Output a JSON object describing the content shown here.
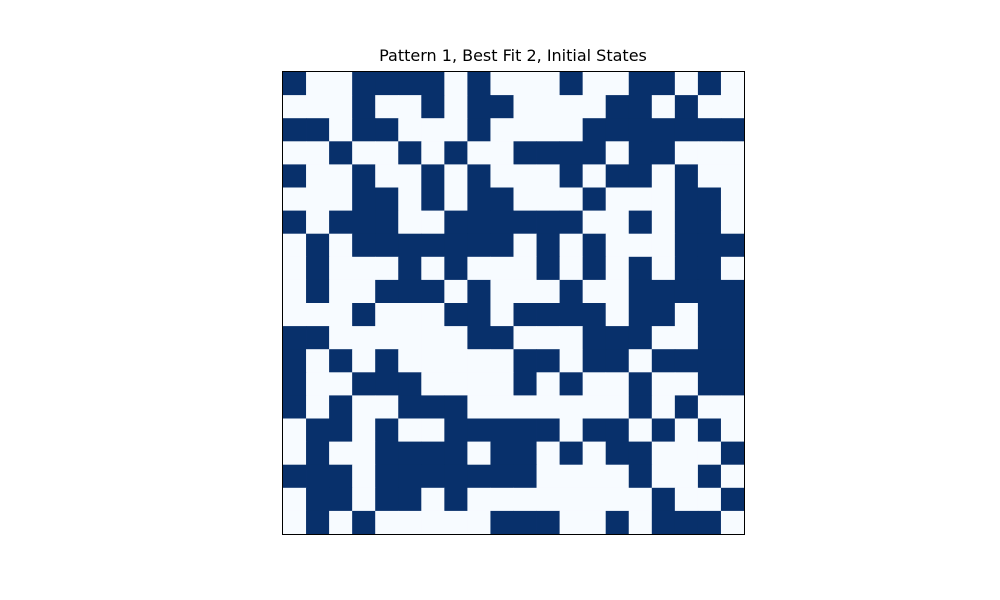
{
  "chart_data": {
    "type": "heatmap",
    "title": "Pattern 1, Best Fit 2, Initial States",
    "xlabel": "",
    "ylabel": "",
    "axes_ticks": "none",
    "grid": false,
    "legend": "none",
    "colormap": "Blues",
    "colors": {
      "on": "#08306b",
      "off": "#f7fbff",
      "frame": "#000000"
    },
    "rows": 20,
    "cols": 20,
    "values": [
      [
        1,
        0,
        0,
        1,
        1,
        1,
        1,
        0,
        1,
        0,
        0,
        0,
        1,
        0,
        0,
        1,
        1,
        0,
        1,
        0
      ],
      [
        0,
        0,
        0,
        1,
        0,
        0,
        1,
        0,
        1,
        1,
        0,
        0,
        0,
        0,
        1,
        1,
        0,
        1,
        0,
        0
      ],
      [
        1,
        1,
        0,
        1,
        1,
        0,
        0,
        0,
        1,
        0,
        0,
        0,
        0,
        1,
        1,
        1,
        1,
        1,
        1,
        1
      ],
      [
        0,
        0,
        1,
        0,
        0,
        1,
        0,
        1,
        0,
        0,
        1,
        1,
        1,
        1,
        0,
        1,
        1,
        0,
        0,
        0
      ],
      [
        1,
        0,
        0,
        1,
        0,
        0,
        1,
        0,
        1,
        0,
        0,
        0,
        1,
        0,
        1,
        1,
        0,
        1,
        0,
        0
      ],
      [
        0,
        0,
        0,
        1,
        1,
        0,
        1,
        0,
        1,
        1,
        0,
        0,
        0,
        1,
        0,
        0,
        0,
        1,
        1,
        0
      ],
      [
        1,
        0,
        1,
        1,
        1,
        0,
        0,
        1,
        1,
        1,
        1,
        1,
        1,
        0,
        0,
        1,
        0,
        1,
        1,
        0
      ],
      [
        0,
        1,
        0,
        1,
        1,
        1,
        1,
        1,
        1,
        1,
        0,
        1,
        0,
        1,
        0,
        0,
        0,
        1,
        1,
        1
      ],
      [
        0,
        1,
        0,
        0,
        0,
        1,
        0,
        1,
        0,
        0,
        0,
        1,
        0,
        1,
        0,
        1,
        0,
        1,
        1,
        0
      ],
      [
        0,
        1,
        0,
        0,
        1,
        1,
        1,
        0,
        1,
        0,
        0,
        0,
        1,
        0,
        0,
        1,
        1,
        1,
        1,
        1
      ],
      [
        0,
        0,
        0,
        1,
        0,
        0,
        0,
        1,
        1,
        0,
        1,
        1,
        1,
        1,
        0,
        1,
        1,
        0,
        1,
        1
      ],
      [
        1,
        1,
        0,
        0,
        0,
        0,
        0,
        0,
        1,
        1,
        0,
        0,
        0,
        1,
        1,
        1,
        0,
        0,
        1,
        1
      ],
      [
        1,
        0,
        1,
        0,
        1,
        0,
        0,
        0,
        0,
        0,
        1,
        1,
        0,
        1,
        1,
        0,
        1,
        1,
        1,
        1
      ],
      [
        1,
        0,
        0,
        1,
        1,
        1,
        0,
        0,
        0,
        0,
        1,
        0,
        1,
        0,
        0,
        1,
        0,
        0,
        1,
        1
      ],
      [
        1,
        0,
        1,
        0,
        0,
        1,
        1,
        1,
        0,
        0,
        0,
        0,
        0,
        0,
        0,
        1,
        0,
        1,
        0,
        0
      ],
      [
        0,
        1,
        1,
        0,
        1,
        0,
        0,
        1,
        1,
        1,
        1,
        1,
        0,
        1,
        1,
        0,
        1,
        0,
        1,
        0
      ],
      [
        0,
        1,
        0,
        0,
        1,
        1,
        1,
        1,
        0,
        1,
        1,
        0,
        1,
        0,
        1,
        1,
        0,
        0,
        0,
        1
      ],
      [
        1,
        1,
        1,
        0,
        1,
        1,
        1,
        1,
        1,
        1,
        1,
        0,
        0,
        0,
        0,
        1,
        0,
        0,
        1,
        0
      ],
      [
        0,
        1,
        1,
        0,
        1,
        1,
        0,
        1,
        0,
        0,
        0,
        0,
        0,
        0,
        0,
        0,
        1,
        0,
        0,
        1
      ],
      [
        0,
        1,
        0,
        1,
        0,
        0,
        0,
        0,
        0,
        1,
        1,
        1,
        0,
        0,
        1,
        0,
        1,
        1,
        1,
        0
      ]
    ]
  }
}
